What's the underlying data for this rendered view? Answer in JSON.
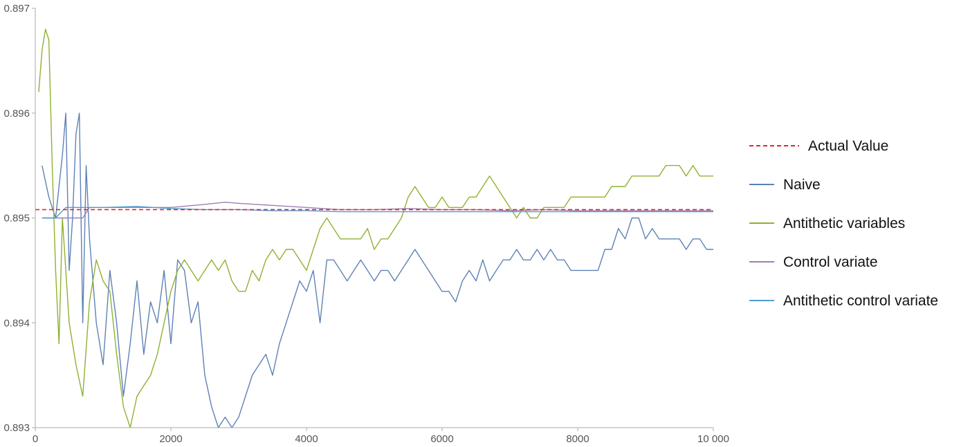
{
  "chart_data": {
    "type": "line",
    "title": "",
    "xlabel": "",
    "ylabel": "",
    "xlim": [
      0,
      10000
    ],
    "ylim": [
      0.893,
      0.897
    ],
    "grid": false,
    "legend_position": "right",
    "x_ticks": [
      {
        "value": 0,
        "label": "0"
      },
      {
        "value": 2000,
        "label": "2000"
      },
      {
        "value": 4000,
        "label": "4000"
      },
      {
        "value": 6000,
        "label": "6000"
      },
      {
        "value": 8000,
        "label": "8000"
      },
      {
        "value": 10000,
        "label": "10 000"
      }
    ],
    "y_ticks": [
      {
        "value": 0.893,
        "label": "0.893"
      },
      {
        "value": 0.894,
        "label": "0.894"
      },
      {
        "value": 0.895,
        "label": "0.895"
      },
      {
        "value": 0.896,
        "label": "0.896"
      },
      {
        "value": 0.897,
        "label": "0.897"
      }
    ],
    "series": [
      {
        "name": "Actual Value",
        "color": "#e3232c",
        "style": "dashed",
        "x": [
          0,
          10000
        ],
        "y": [
          0.89508,
          0.89508
        ]
      },
      {
        "name": "Naive",
        "color": "#5e81b5",
        "style": "solid",
        "x": [
          100,
          200,
          300,
          400,
          450,
          500,
          550,
          600,
          650,
          700,
          750,
          800,
          900,
          1000,
          1100,
          1200,
          1300,
          1400,
          1500,
          1600,
          1700,
          1800,
          1900,
          2000,
          2100,
          2200,
          2300,
          2400,
          2500,
          2600,
          2700,
          2800,
          2900,
          3000,
          3100,
          3200,
          3300,
          3400,
          3500,
          3600,
          3700,
          3800,
          3900,
          4000,
          4100,
          4200,
          4300,
          4400,
          4500,
          4600,
          4700,
          4800,
          4900,
          5000,
          5100,
          5200,
          5300,
          5400,
          5500,
          5600,
          5700,
          5800,
          5900,
          6000,
          6100,
          6200,
          6300,
          6400,
          6500,
          6600,
          6700,
          6800,
          6900,
          7000,
          7100,
          7200,
          7300,
          7400,
          7500,
          7600,
          7700,
          7800,
          7900,
          8000,
          8100,
          8200,
          8300,
          8400,
          8500,
          8600,
          8700,
          8800,
          8900,
          9000,
          9100,
          9200,
          9300,
          9400,
          9500,
          9600,
          9700,
          9800,
          9900,
          10000
        ],
        "y": [
          0.8955,
          0.8952,
          0.895,
          0.8956,
          0.896,
          0.8945,
          0.895,
          0.8958,
          0.896,
          0.894,
          0.8955,
          0.8948,
          0.894,
          0.8936,
          0.8945,
          0.894,
          0.8933,
          0.8938,
          0.8944,
          0.8937,
          0.8942,
          0.894,
          0.8945,
          0.8938,
          0.8946,
          0.8945,
          0.894,
          0.8942,
          0.8935,
          0.8932,
          0.893,
          0.8931,
          0.893,
          0.8931,
          0.8933,
          0.8935,
          0.8936,
          0.8937,
          0.8935,
          0.8938,
          0.894,
          0.8942,
          0.8944,
          0.8943,
          0.8945,
          0.894,
          0.8946,
          0.8946,
          0.8945,
          0.8944,
          0.8945,
          0.8946,
          0.8945,
          0.8944,
          0.8945,
          0.8945,
          0.8944,
          0.8945,
          0.8946,
          0.8947,
          0.8946,
          0.8945,
          0.8944,
          0.8943,
          0.8943,
          0.8942,
          0.8944,
          0.8945,
          0.8944,
          0.8946,
          0.8944,
          0.8945,
          0.8946,
          0.8946,
          0.8947,
          0.8946,
          0.8946,
          0.8947,
          0.8946,
          0.8947,
          0.8946,
          0.8946,
          0.8945,
          0.8945,
          0.8945,
          0.8945,
          0.8945,
          0.8947,
          0.8947,
          0.8949,
          0.8948,
          0.895,
          0.895,
          0.8948,
          0.8949,
          0.8948,
          0.8948,
          0.8948,
          0.8948,
          0.8947,
          0.8948,
          0.8948,
          0.8947,
          0.8947
        ]
      },
      {
        "name": "Antithetic variables",
        "color": "#8fb131",
        "style": "solid",
        "x": [
          50,
          100,
          150,
          200,
          250,
          300,
          350,
          400,
          450,
          500,
          550,
          600,
          700,
          800,
          900,
          1000,
          1100,
          1200,
          1300,
          1400,
          1500,
          1600,
          1700,
          1800,
          1900,
          2000,
          2100,
          2200,
          2300,
          2400,
          2500,
          2600,
          2700,
          2800,
          2900,
          3000,
          3100,
          3200,
          3300,
          3400,
          3500,
          3600,
          3700,
          3800,
          3900,
          4000,
          4100,
          4200,
          4300,
          4400,
          4500,
          4600,
          4700,
          4800,
          4900,
          5000,
          5100,
          5200,
          5300,
          5400,
          5500,
          5600,
          5700,
          5800,
          5900,
          6000,
          6100,
          6200,
          6300,
          6400,
          6500,
          6600,
          6700,
          6800,
          6900,
          7000,
          7100,
          7200,
          7300,
          7400,
          7500,
          7600,
          7700,
          7800,
          7900,
          8000,
          8100,
          8200,
          8300,
          8400,
          8500,
          8600,
          8700,
          8800,
          8900,
          9000,
          9100,
          9200,
          9300,
          9400,
          9500,
          9600,
          9700,
          9800,
          9900,
          10000
        ],
        "y": [
          0.8962,
          0.8966,
          0.8968,
          0.8967,
          0.8955,
          0.8945,
          0.8938,
          0.895,
          0.8945,
          0.894,
          0.8938,
          0.8936,
          0.8933,
          0.8942,
          0.8946,
          0.8944,
          0.8943,
          0.8937,
          0.8932,
          0.893,
          0.8933,
          0.8934,
          0.8935,
          0.8937,
          0.894,
          0.8943,
          0.8945,
          0.8946,
          0.8945,
          0.8944,
          0.8945,
          0.8946,
          0.8945,
          0.8946,
          0.8944,
          0.8943,
          0.8943,
          0.8945,
          0.8944,
          0.8946,
          0.8947,
          0.8946,
          0.8947,
          0.8947,
          0.8946,
          0.8945,
          0.8947,
          0.8949,
          0.895,
          0.8949,
          0.8948,
          0.8948,
          0.8948,
          0.8948,
          0.8949,
          0.8947,
          0.8948,
          0.8948,
          0.8949,
          0.895,
          0.8952,
          0.8953,
          0.8952,
          0.8951,
          0.8951,
          0.8952,
          0.8951,
          0.8951,
          0.8951,
          0.8952,
          0.8952,
          0.8953,
          0.8954,
          0.8953,
          0.8952,
          0.8951,
          0.895,
          0.8951,
          0.895,
          0.895,
          0.8951,
          0.8951,
          0.8951,
          0.8951,
          0.8952,
          0.8952,
          0.8952,
          0.8952,
          0.8952,
          0.8952,
          0.8953,
          0.8953,
          0.8953,
          0.8954,
          0.8954,
          0.8954,
          0.8954,
          0.8954,
          0.8955,
          0.8955,
          0.8955,
          0.8954,
          0.8955,
          0.8954,
          0.8954,
          0.8954
        ]
      },
      {
        "name": "Control variate",
        "color": "#9d7eb5",
        "style": "solid",
        "x": [
          100,
          300,
          500,
          600,
          700,
          800,
          1000,
          1500,
          2000,
          2500,
          2800,
          3000,
          3500,
          4000,
          4500,
          5000,
          5500,
          6000,
          6500,
          7000,
          7500,
          8000,
          8500,
          9000,
          9500,
          10000
        ],
        "y": [
          0.895,
          0.895,
          0.895,
          0.895,
          0.895,
          0.8951,
          0.8951,
          0.8951,
          0.8951,
          0.89513,
          0.89515,
          0.89514,
          0.89512,
          0.8951,
          0.89508,
          0.89508,
          0.89509,
          0.89508,
          0.89508,
          0.89507,
          0.89508,
          0.89507,
          0.89507,
          0.89507,
          0.89507,
          0.89507
        ]
      },
      {
        "name": "Antithetic control variate",
        "color": "#4d9bd2",
        "style": "solid",
        "x": [
          100,
          300,
          450,
          500,
          700,
          1000,
          1500,
          2000,
          2500,
          3000,
          3500,
          4000,
          4500,
          5000,
          5500,
          6000,
          6500,
          7000,
          7500,
          8000,
          8500,
          9000,
          9500,
          10000
        ],
        "y": [
          0.895,
          0.895,
          0.8951,
          0.8951,
          0.8951,
          0.8951,
          0.89511,
          0.89509,
          0.89508,
          0.89508,
          0.89507,
          0.89507,
          0.89506,
          0.89506,
          0.89506,
          0.89506,
          0.89506,
          0.89506,
          0.89506,
          0.89506,
          0.89506,
          0.89506,
          0.89506,
          0.89506
        ]
      }
    ]
  }
}
